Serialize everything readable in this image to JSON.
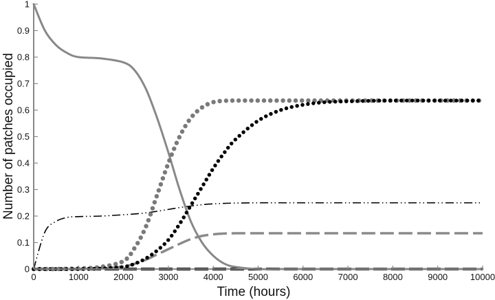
{
  "chart_data": {
    "type": "line",
    "title": "",
    "xlabel": "Time (hours)",
    "ylabel": "Number of patches occupied",
    "xlim": [
      0,
      10000
    ],
    "ylim": [
      0,
      1
    ],
    "xticks": [
      0,
      1000,
      2000,
      3000,
      4000,
      5000,
      6000,
      7000,
      8000,
      9000,
      10000
    ],
    "yticks": [
      0,
      0.1,
      0.2,
      0.3,
      0.4,
      0.5,
      0.6,
      0.7,
      0.8,
      0.9,
      1
    ],
    "ytick_labels": [
      "0",
      "0.1",
      "0.2",
      "0.3",
      "0.4",
      "0.5",
      "0.6",
      "0.7",
      "0.8",
      "0.9",
      "1"
    ],
    "grid": false,
    "legend": null,
    "x": [
      0,
      250,
      500,
      750,
      1000,
      1500,
      2000,
      2250,
      2500,
      2750,
      3000,
      3250,
      3500,
      3750,
      4000,
      4250,
      4500,
      5000,
      5500,
      6000,
      6500,
      7000,
      7500,
      8000,
      9000,
      10000
    ],
    "series": [
      {
        "name": "solid gray",
        "style": "solid",
        "color": "#888888",
        "values": [
          1.0,
          0.9,
          0.845,
          0.815,
          0.8,
          0.795,
          0.78,
          0.75,
          0.68,
          0.57,
          0.44,
          0.3,
          0.18,
          0.1,
          0.05,
          0.02,
          0.008,
          0.0,
          0.0,
          0.0,
          0.0,
          0.0,
          0.0,
          0.0,
          0.0,
          0.0
        ]
      },
      {
        "name": "gray dotted",
        "style": "dotted-large",
        "color": "#7a7a7a",
        "values": [
          0.0,
          0.0,
          0.0,
          0.001,
          0.002,
          0.008,
          0.03,
          0.08,
          0.16,
          0.28,
          0.4,
          0.5,
          0.57,
          0.61,
          0.63,
          0.635,
          0.636,
          0.636,
          0.636,
          0.636,
          0.636,
          0.636,
          0.636,
          0.636,
          0.636,
          0.636
        ]
      },
      {
        "name": "black dotted",
        "style": "dotted",
        "color": "#000000",
        "values": [
          0.0,
          0.0,
          0.0,
          0.0,
          0.0,
          0.002,
          0.008,
          0.02,
          0.04,
          0.07,
          0.11,
          0.17,
          0.24,
          0.31,
          0.38,
          0.44,
          0.49,
          0.56,
          0.6,
          0.62,
          0.63,
          0.633,
          0.635,
          0.636,
          0.636,
          0.636
        ]
      },
      {
        "name": "dash-dot-dot black",
        "style": "dash-dot-dot",
        "color": "#000000",
        "values": [
          0.0,
          0.14,
          0.18,
          0.195,
          0.198,
          0.2,
          0.205,
          0.208,
          0.212,
          0.218,
          0.225,
          0.232,
          0.238,
          0.243,
          0.246,
          0.248,
          0.249,
          0.25,
          0.25,
          0.25,
          0.25,
          0.25,
          0.25,
          0.25,
          0.25,
          0.25
        ]
      },
      {
        "name": "long dash gray",
        "style": "long-dash",
        "color": "#8a8a8a",
        "values": [
          0.0,
          0.0,
          0.0,
          0.0,
          0.0,
          0.002,
          0.01,
          0.02,
          0.035,
          0.055,
          0.075,
          0.095,
          0.113,
          0.125,
          0.131,
          0.134,
          0.135,
          0.135,
          0.135,
          0.135,
          0.135,
          0.135,
          0.135,
          0.135,
          0.135,
          0.135
        ]
      },
      {
        "name": "thick dash black (baseline)",
        "style": "thick-dash",
        "color": "#000000",
        "values": [
          0,
          0,
          0,
          0,
          0,
          0,
          0,
          0,
          0,
          0,
          0,
          0,
          0,
          0,
          0,
          0,
          0,
          0,
          0,
          0,
          0,
          0,
          0,
          0,
          0,
          0
        ]
      }
    ]
  }
}
